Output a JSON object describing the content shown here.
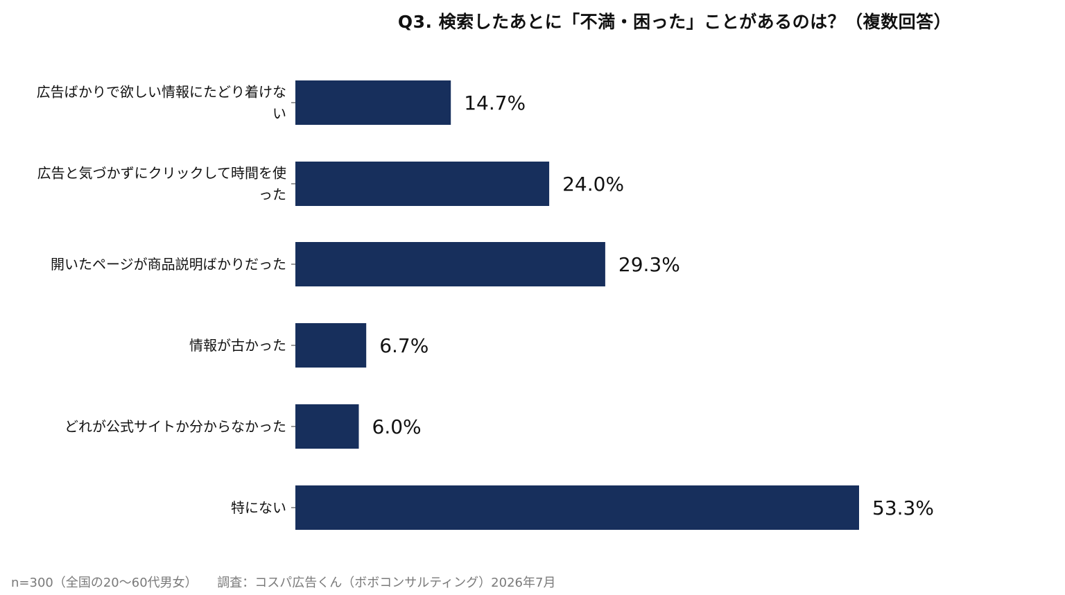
{
  "chart_data": {
    "type": "bar",
    "orientation": "horizontal",
    "title": "Q3. 検索したあとに「不満・困った」ことがあるのは？（複数回答）",
    "categories": [
      "広告ばかりで欲しい情報にたどり着けない",
      "広告と気づかずにクリックして時間を使った",
      "開いたページが商品説明ばかりだった",
      "情報が古かった",
      "どれが公式サイトか分からなかった",
      "特にない"
    ],
    "category_lines": [
      [
        "広告ばかりで欲しい情報にたどり着けな",
        "い"
      ],
      [
        "広告と気づかずにクリックして時間を使",
        "った"
      ],
      [
        "開いたページが商品説明ばかりだった"
      ],
      [
        "情報が古かった"
      ],
      [
        "どれが公式サイトか分からなかった"
      ],
      [
        "特にない"
      ]
    ],
    "values": [
      14.7,
      24.0,
      29.3,
      6.7,
      6.0,
      53.3
    ],
    "value_labels": [
      "14.7%",
      "24.0%",
      "29.3%",
      "6.7%",
      "6.0%",
      "53.3%"
    ],
    "xlim": [
      0,
      100
    ],
    "grid": false,
    "bar_color": "#172f5c"
  },
  "footnote": {
    "sample": "n=300（全国の20〜60代男女）",
    "source": "調査：コスパ広告くん（ボボコンサルティング）2026年7月"
  }
}
